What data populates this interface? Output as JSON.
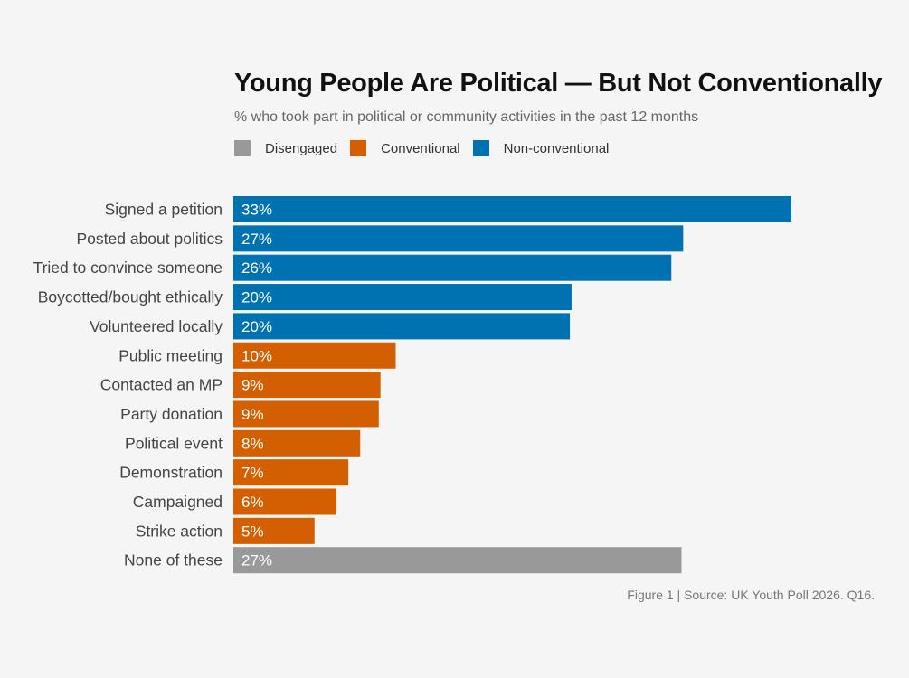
{
  "chart_data": {
    "type": "bar",
    "orientation": "horizontal",
    "title": "Young People Are Political — But Not Conventionally",
    "subtitle": "% who took part in political or community activities in the past 12 months",
    "legend": [
      {
        "name": "Disengaged",
        "color": "#999999"
      },
      {
        "name": "Conventional",
        "color": "#d35f00"
      },
      {
        "name": "Non-conventional",
        "color": "#0072b2"
      }
    ],
    "categories": [
      "Signed a petition",
      "Posted about politics",
      "Tried to convince someone",
      "Boycotted/bought ethically",
      "Volunteered locally",
      "Public meeting",
      "Contacted an MP",
      "Party donation",
      "Political event",
      "Demonstration",
      "Campaigned",
      "Strike action",
      "None of these"
    ],
    "values": [
      33.0,
      26.6,
      25.9,
      20.0,
      19.9,
      9.6,
      8.7,
      8.6,
      7.5,
      6.8,
      6.1,
      4.8,
      26.5
    ],
    "value_labels": [
      "33%",
      "27%",
      "26%",
      "20%",
      "20%",
      "10%",
      "9%",
      "9%",
      "8%",
      "7%",
      "6%",
      "5%",
      "27%"
    ],
    "groups": [
      "Non-conventional",
      "Non-conventional",
      "Non-conventional",
      "Non-conventional",
      "Non-conventional",
      "Conventional",
      "Conventional",
      "Conventional",
      "Conventional",
      "Conventional",
      "Conventional",
      "Conventional",
      "Disengaged"
    ],
    "xlim": [
      0,
      33
    ],
    "grid": false,
    "legend_position": "top-left"
  },
  "source": "Figure 1 | Source: UK Youth Poll 2026. Q16."
}
